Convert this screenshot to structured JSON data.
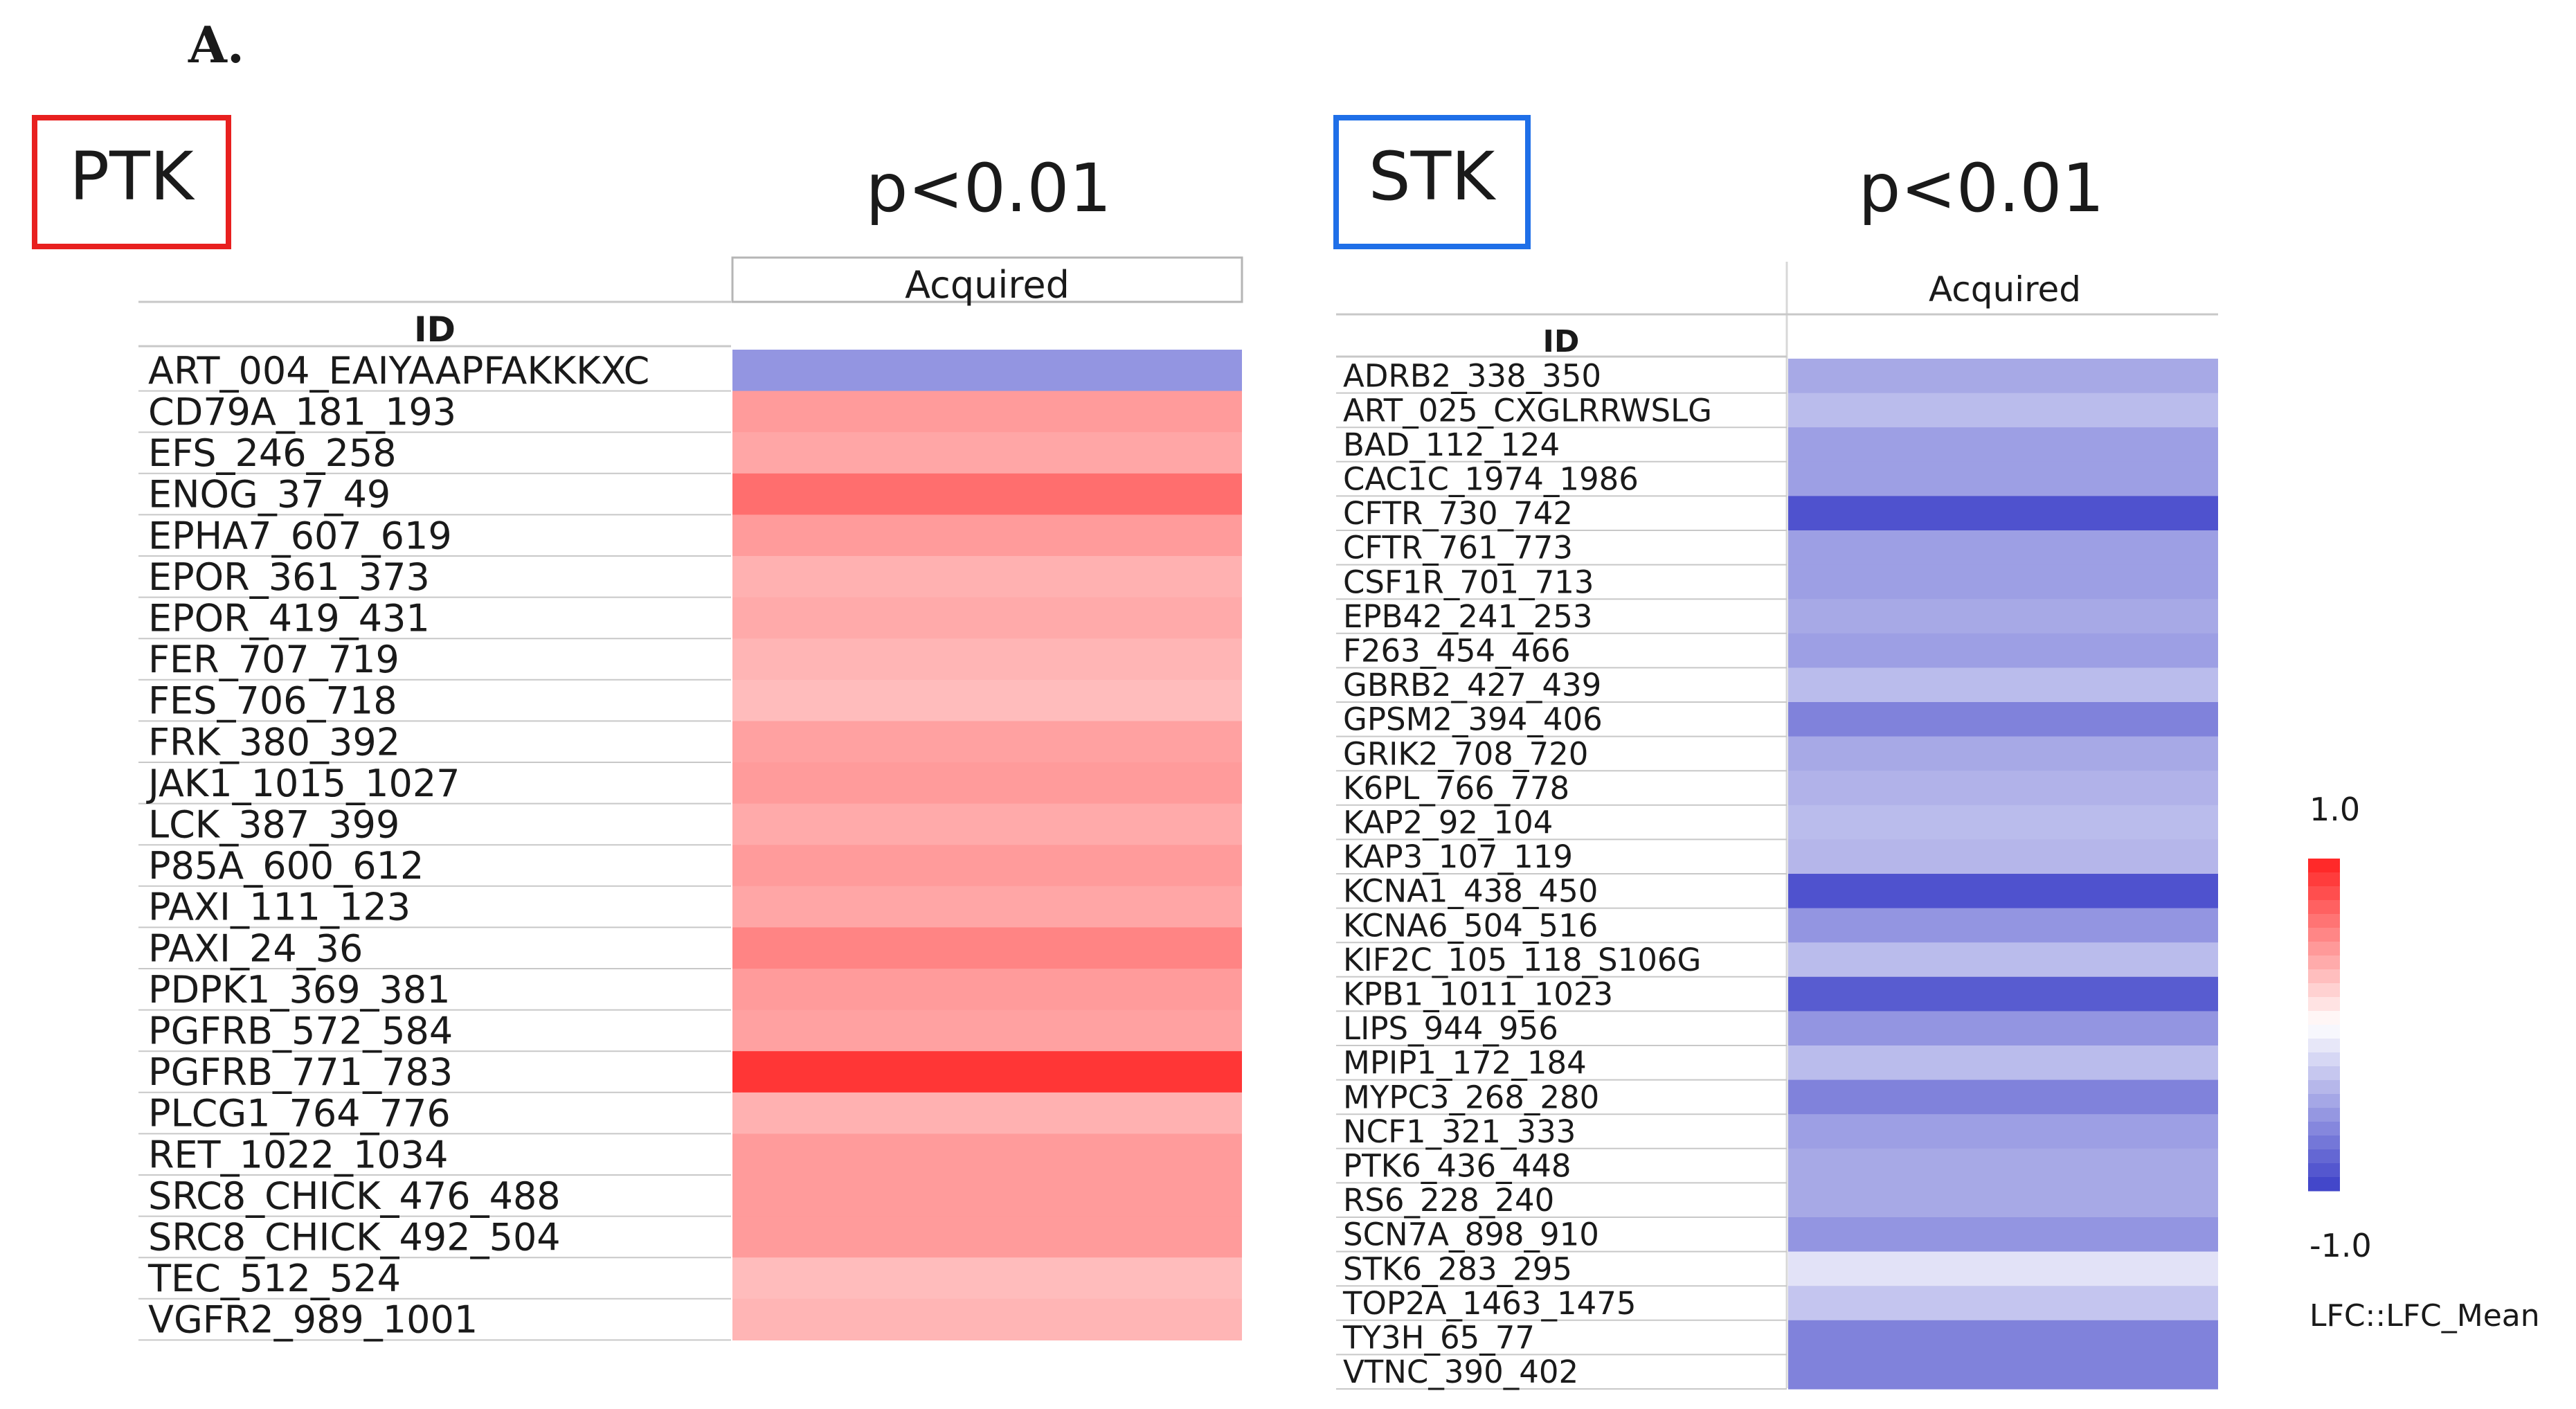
{
  "panel_label": "A.",
  "colors": {
    "ptk_box": "#e8201f",
    "stk_box": "#1f6fe8",
    "high": "#ff2020",
    "mid": "#ffffff",
    "low": "#3b3fc8",
    "text": "#1a1a1a",
    "rule": "#c8c8c8"
  },
  "colorbar": {
    "max_label": "1.0",
    "min_label": "-1.0",
    "metric_label": "LFC::LFC_Mean"
  },
  "chart_data": [
    {
      "type": "heatmap",
      "title": "PTK",
      "subtitle": "p<0.01",
      "column_header": "Acquired",
      "id_header": "ID",
      "zlim": [
        -1.0,
        1.0
      ],
      "rows": [
        {
          "id": "ART_004_EAIYAAPFAKKKXC",
          "value": -0.55
        },
        {
          "id": "CD79A_181_193",
          "value": 0.45
        },
        {
          "id": "EFS_246_258",
          "value": 0.4
        },
        {
          "id": "ENOG_37_49",
          "value": 0.65
        },
        {
          "id": "EPHA7_607_619",
          "value": 0.45
        },
        {
          "id": "EPOR_361_373",
          "value": 0.35
        },
        {
          "id": "EPOR_419_431",
          "value": 0.38
        },
        {
          "id": "FER_707_719",
          "value": 0.33
        },
        {
          "id": "FES_706_718",
          "value": 0.3
        },
        {
          "id": "FRK_380_392",
          "value": 0.42
        },
        {
          "id": "JAK1_1015_1027",
          "value": 0.45
        },
        {
          "id": "LCK_387_399",
          "value": 0.38
        },
        {
          "id": "P85A_600_612",
          "value": 0.45
        },
        {
          "id": "PAXI_111_123",
          "value": 0.4
        },
        {
          "id": "PAXI_24_36",
          "value": 0.55
        },
        {
          "id": "PDPK1_369_381",
          "value": 0.45
        },
        {
          "id": "PGFRB_572_584",
          "value": 0.42
        },
        {
          "id": "PGFRB_771_783",
          "value": 0.9
        },
        {
          "id": "PLCG1_764_776",
          "value": 0.35
        },
        {
          "id": "RET_1022_1034",
          "value": 0.45
        },
        {
          "id": "SRC8_CHICK_476_488",
          "value": 0.45
        },
        {
          "id": "SRC8_CHICK_492_504",
          "value": 0.45
        },
        {
          "id": "TEC_512_524",
          "value": 0.3
        },
        {
          "id": "VGFR2_989_1001",
          "value": 0.33
        }
      ]
    },
    {
      "type": "heatmap",
      "title": "STK",
      "subtitle": "p<0.01",
      "column_header": "Acquired",
      "id_header": "ID",
      "zlim": [
        -1.0,
        1.0
      ],
      "rows": [
        {
          "id": "ADRB2_338_350",
          "value": -0.45
        },
        {
          "id": "ART_025_CXGLRRWSLG",
          "value": -0.35
        },
        {
          "id": "BAD_112_124",
          "value": -0.5
        },
        {
          "id": "CAC1C_1974_1986",
          "value": -0.5
        },
        {
          "id": "CFTR_730_742",
          "value": -0.9
        },
        {
          "id": "CFTR_761_773",
          "value": -0.5
        },
        {
          "id": "CSF1R_701_713",
          "value": -0.5
        },
        {
          "id": "EPB42_241_253",
          "value": -0.45
        },
        {
          "id": "F263_454_466",
          "value": -0.5
        },
        {
          "id": "GBRB2_427_439",
          "value": -0.35
        },
        {
          "id": "GPSM2_394_406",
          "value": -0.65
        },
        {
          "id": "GRIK2_708_720",
          "value": -0.45
        },
        {
          "id": "K6PL_766_778",
          "value": -0.4
        },
        {
          "id": "KAP2_92_104",
          "value": -0.35
        },
        {
          "id": "KAP3_107_119",
          "value": -0.38
        },
        {
          "id": "KCNA1_438_450",
          "value": -0.9
        },
        {
          "id": "KCNA6_504_516",
          "value": -0.55
        },
        {
          "id": "KIF2C_105_118_S106G",
          "value": -0.35
        },
        {
          "id": "KPB1_1011_1023",
          "value": -0.85
        },
        {
          "id": "LIPS_944_956",
          "value": -0.55
        },
        {
          "id": "MPIP1_172_184",
          "value": -0.35
        },
        {
          "id": "MYPC3_268_280",
          "value": -0.65
        },
        {
          "id": "NCF1_321_333",
          "value": -0.5
        },
        {
          "id": "PTK6_436_448",
          "value": -0.45
        },
        {
          "id": "RS6_228_240",
          "value": -0.45
        },
        {
          "id": "SCN7A_898_910",
          "value": -0.55
        },
        {
          "id": "STK6_283_295",
          "value": -0.15
        },
        {
          "id": "TOP2A_1463_1475",
          "value": -0.3
        },
        {
          "id": "TY3H_65_77",
          "value": -0.65
        },
        {
          "id": "VTNC_390_402",
          "value": -0.65
        }
      ]
    }
  ]
}
